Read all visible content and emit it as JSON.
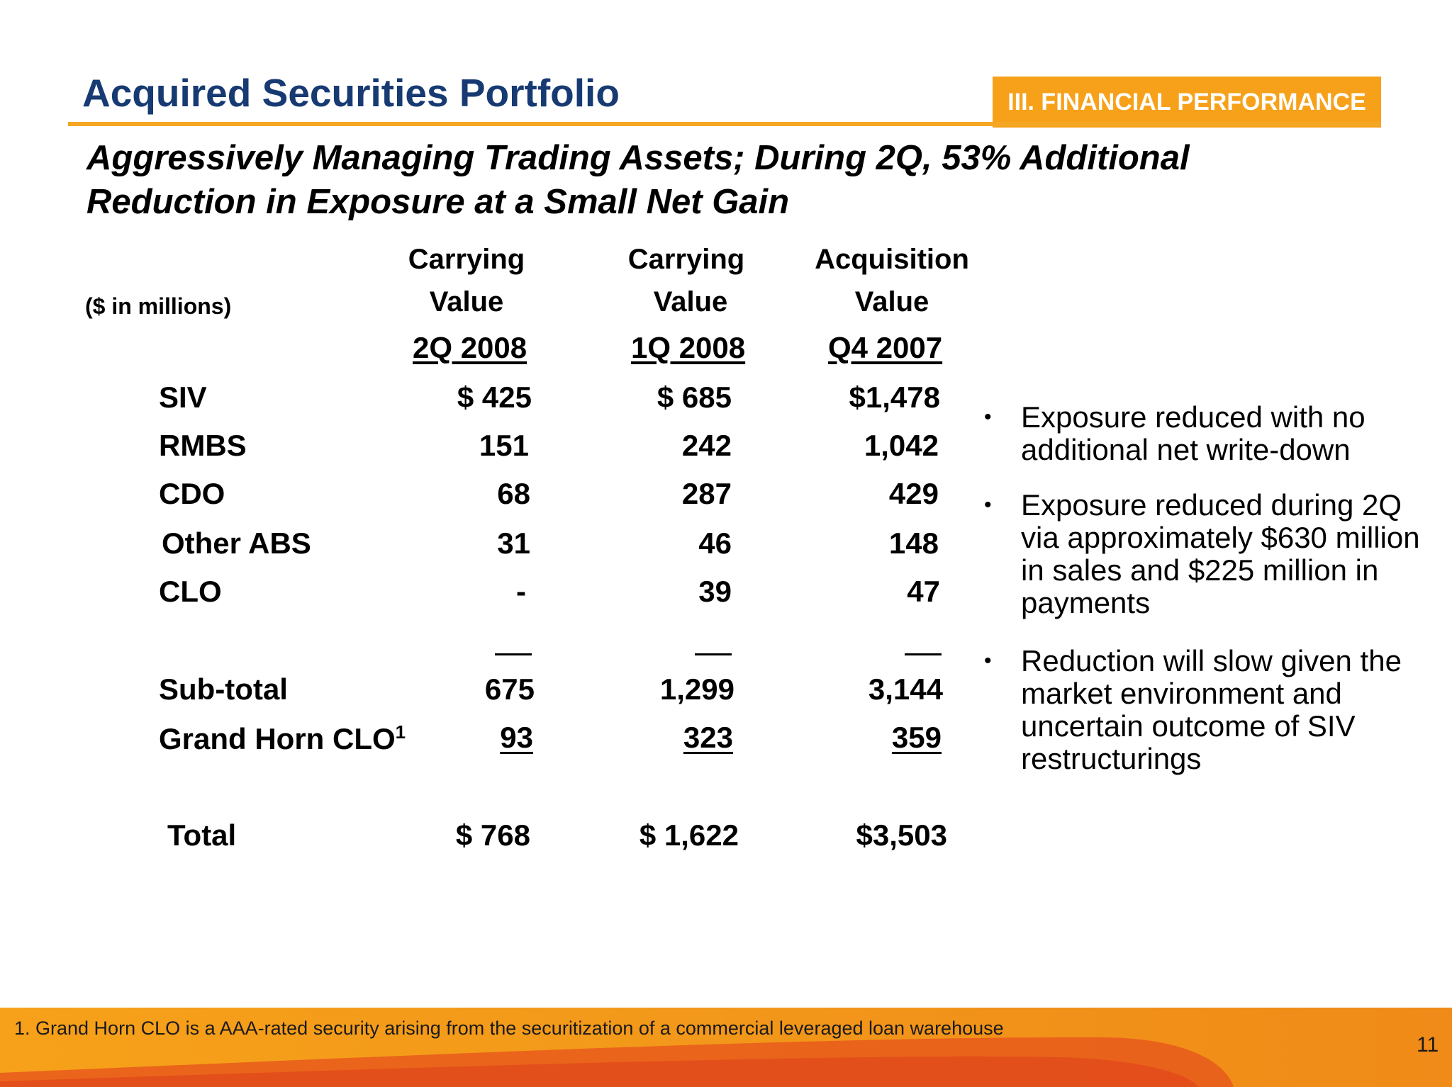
{
  "header": {
    "title": "Acquired Securities Portfolio",
    "section": "III. FINANCIAL PERFORMANCE",
    "subtitle": "Aggressively Managing Trading Assets; During 2Q, 53% Additional Reduction in Exposure at a Small Net Gain"
  },
  "table": {
    "units": "($ in millions)",
    "columns": [
      {
        "line1": "Carrying",
        "line2": "Value",
        "period": "2Q 2008"
      },
      {
        "line1": "Carrying",
        "line2": "Value",
        "period": "1Q 2008"
      },
      {
        "line1": "Acquisition",
        "line2": "Value",
        "period": "Q4 2007"
      }
    ],
    "rows": [
      {
        "label": "SIV",
        "values": [
          "$  425",
          "$  685",
          "$1,478"
        ]
      },
      {
        "label": "RMBS",
        "values": [
          "151",
          "242",
          "1,042"
        ]
      },
      {
        "label": "CDO",
        "values": [
          "68",
          "287",
          "429"
        ]
      },
      {
        "label": "Other ABS",
        "values": [
          "31",
          "46",
          "148"
        ]
      },
      {
        "label": "CLO",
        "values": [
          "-",
          "39",
          "47"
        ]
      }
    ],
    "subtotal": {
      "label": "Sub-total",
      "values": [
        "675",
        "1,299",
        "3,144"
      ]
    },
    "grand_horn": {
      "label": "Grand Horn CLO",
      "sup": "1",
      "values": [
        "93",
        "323",
        "359"
      ]
    },
    "total": {
      "label": "Total",
      "values": [
        "$  768",
        "$ 1,622",
        "$3,503"
      ]
    }
  },
  "bullets": [
    "Exposure reduced with no additional net write-down",
    "Exposure reduced during 2Q via approximately $630 million in sales and $225 million in payments",
    "Reduction will slow given the market environment and uncertain outcome of SIV restructurings"
  ],
  "footer": {
    "footnote": "1.  Grand Horn CLO is a AAA-rated security arising from the securitization of a commercial leveraged loan warehouse",
    "page_number": "11"
  },
  "colors": {
    "title_blue": "#173a72",
    "accent_orange": "#f7a11a",
    "footer_dark_orange": "#e85a1c"
  }
}
